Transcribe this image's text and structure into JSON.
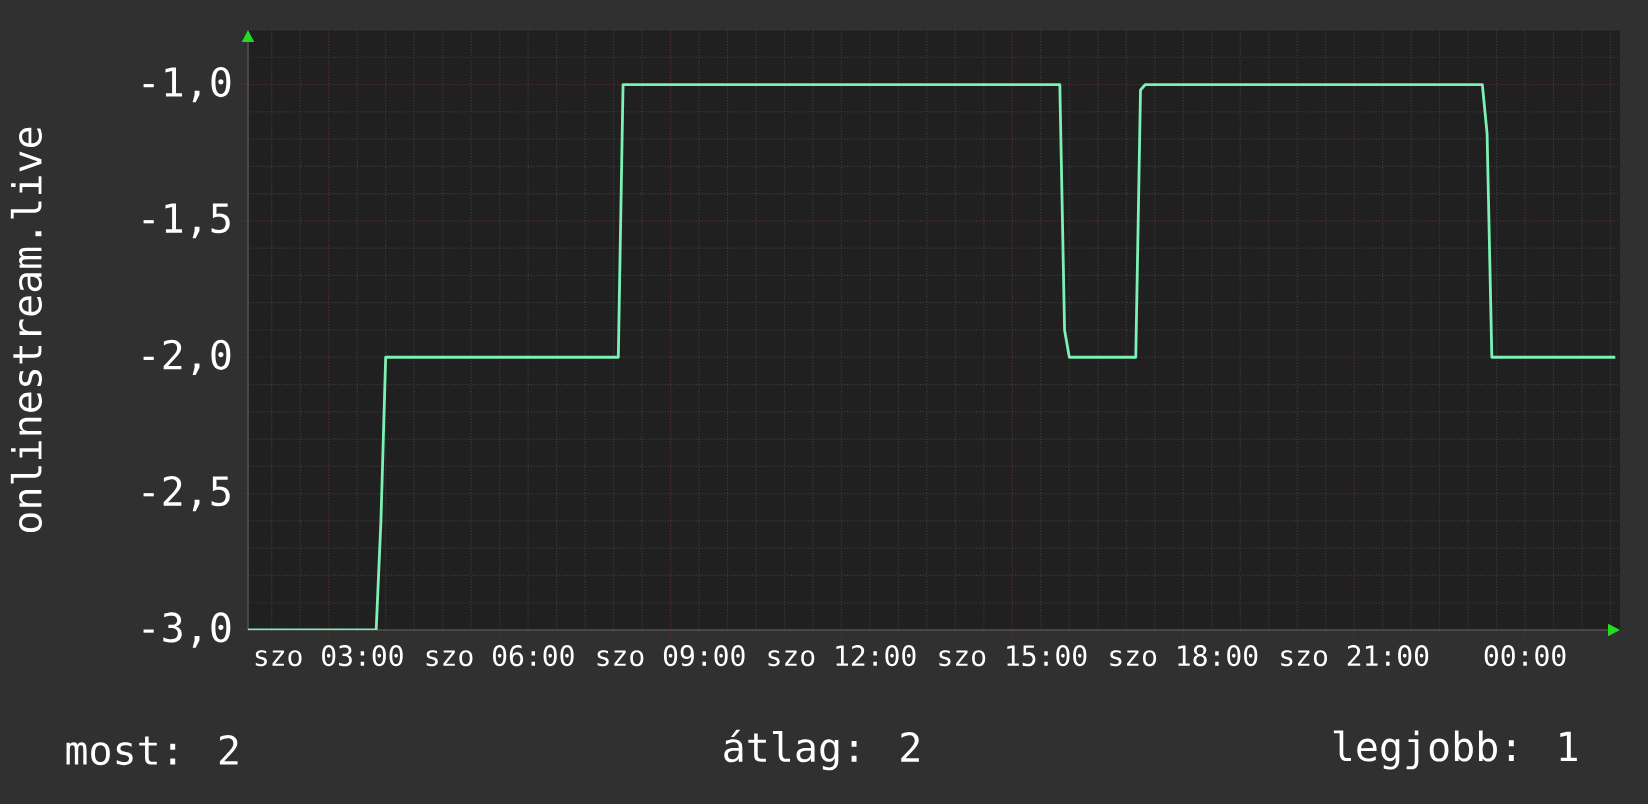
{
  "chart_data": {
    "type": "line",
    "ylabel": "onlinestream.live",
    "categories": [
      null,
      null,
      null,
      null,
      null,
      null,
      null,
      null,
      null,
      null,
      null,
      null,
      null,
      null,
      null,
      null,
      null,
      "szo 03:00",
      null,
      null,
      null,
      null,
      null,
      null,
      null,
      null,
      null,
      null,
      null,
      null,
      null,
      null,
      null,
      null,
      null,
      null,
      null,
      null,
      null,
      null,
      null,
      null,
      null,
      null,
      null,
      null,
      null,
      null,
      null,
      null,
      null,
      null,
      null,
      "szo 06:00",
      null,
      null,
      null,
      null,
      null,
      null,
      null,
      null,
      null,
      null,
      null,
      null,
      null,
      null,
      null,
      null,
      null,
      null,
      null,
      null,
      null,
      null,
      null,
      null,
      null,
      null,
      null,
      null,
      null,
      null,
      null,
      null,
      null,
      null,
      null,
      "szo 09:00",
      null,
      null,
      null,
      null,
      null,
      null,
      null,
      null,
      null,
      null,
      null,
      null,
      null,
      null,
      null,
      null,
      null,
      null,
      null,
      null,
      null,
      null,
      null,
      null,
      null,
      null,
      null,
      null,
      null,
      null,
      null,
      null,
      null,
      null,
      null,
      "szo 12:00",
      null,
      null,
      null,
      null,
      null,
      null,
      null,
      null,
      null,
      null,
      null,
      null,
      null,
      null,
      null,
      null,
      null,
      null,
      null,
      null,
      null,
      null,
      null,
      null,
      null,
      null,
      null,
      null,
      null,
      null,
      null,
      null,
      null,
      null,
      null,
      "szo 15:00",
      null,
      null,
      null,
      null,
      null,
      null,
      null,
      null,
      null,
      null,
      null,
      null,
      null,
      null,
      null,
      null,
      null,
      null,
      null,
      null,
      null,
      null,
      null,
      null,
      null,
      null,
      null,
      null,
      null,
      null,
      null,
      null,
      null,
      null,
      null,
      "szo 18:00",
      null,
      null,
      null,
      null,
      null,
      null,
      null,
      null,
      null,
      null,
      null,
      null,
      null,
      null,
      null,
      null,
      null,
      null,
      null,
      null,
      null,
      null,
      null,
      null,
      null,
      null,
      null,
      null,
      null,
      null,
      null,
      null,
      null,
      null,
      null,
      "szo 21:00",
      null,
      null,
      null,
      null,
      null,
      null,
      null,
      null,
      null,
      null,
      null,
      null,
      null,
      null,
      null,
      null,
      null,
      null,
      null,
      null,
      null,
      null,
      null,
      null,
      null,
      null,
      null,
      null,
      null,
      null,
      null,
      null,
      null,
      null,
      null,
      "00:00",
      null,
      null,
      null,
      null,
      null,
      null,
      null,
      null,
      null,
      null,
      null,
      null,
      null,
      null,
      null,
      null,
      null,
      null,
      null
    ],
    "series": [
      {
        "color": "#7df0b4",
        "values": [
          -3,
          -3,
          -3,
          -3,
          -3,
          -3,
          -3,
          -3,
          -3,
          -3,
          -3,
          -3,
          -3,
          -3,
          -3,
          -3,
          -3,
          -3,
          -3,
          -3,
          -3,
          -3,
          -3,
          -3,
          -3,
          -3,
          -3,
          -3,
          -2.6,
          -2,
          -2,
          -2,
          -2,
          -2,
          -2,
          -2,
          -2,
          -2,
          -2,
          -2,
          -2,
          -2,
          -2,
          -2,
          -2,
          -2,
          -2,
          -2,
          -2,
          -2,
          -2,
          -2,
          -2,
          -2,
          -2,
          -2,
          -2,
          -2,
          -2,
          -2,
          -2,
          -2,
          -2,
          -2,
          -2,
          -2,
          -2,
          -2,
          -2,
          -2,
          -2,
          -2,
          -2,
          -2,
          -2,
          -2,
          -2,
          -2,
          -2,
          -1,
          -1,
          -1,
          -1,
          -1,
          -1,
          -1,
          -1,
          -1,
          -1,
          -1,
          -1,
          -1,
          -1,
          -1,
          -1,
          -1,
          -1,
          -1,
          -1,
          -1,
          -1,
          -1,
          -1,
          -1,
          -1,
          -1,
          -1,
          -1,
          -1,
          -1,
          -1,
          -1,
          -1,
          -1,
          -1,
          -1,
          -1,
          -1,
          -1,
          -1,
          -1,
          -1,
          -1,
          -1,
          -1,
          -1,
          -1,
          -1,
          -1,
          -1,
          -1,
          -1,
          -1,
          -1,
          -1,
          -1,
          -1,
          -1,
          -1,
          -1,
          -1,
          -1,
          -1,
          -1,
          -1,
          -1,
          -1,
          -1,
          -1,
          -1,
          -1,
          -1,
          -1,
          -1,
          -1,
          -1,
          -1,
          -1,
          -1,
          -1,
          -1,
          -1,
          -1,
          -1,
          -1,
          -1,
          -1,
          -1,
          -1,
          -1,
          -1,
          -1,
          -1.9,
          -2,
          -2,
          -2,
          -2,
          -2,
          -2,
          -2,
          -2,
          -2,
          -2,
          -2,
          -2,
          -2,
          -2,
          -2,
          -1.02,
          -1,
          -1,
          -1,
          -1,
          -1,
          -1,
          -1,
          -1,
          -1,
          -1,
          -1,
          -1,
          -1,
          -1,
          -1,
          -1,
          -1,
          -1,
          -1,
          -1,
          -1,
          -1,
          -1,
          -1,
          -1,
          -1,
          -1,
          -1,
          -1,
          -1,
          -1,
          -1,
          -1,
          -1,
          -1,
          -1,
          -1,
          -1,
          -1,
          -1,
          -1,
          -1,
          -1,
          -1,
          -1,
          -1,
          -1,
          -1,
          -1,
          -1,
          -1,
          -1,
          -1,
          -1,
          -1,
          -1,
          -1,
          -1,
          -1,
          -1,
          -1,
          -1,
          -1,
          -1,
          -1,
          -1,
          -1,
          -1,
          -1,
          -1,
          -1,
          -1,
          -1.18,
          -2,
          -2,
          -2,
          -2,
          -2,
          -2,
          -2,
          -2,
          -2,
          -2,
          -2,
          -2,
          -2,
          -2,
          -2,
          -2,
          -2,
          -2,
          -2,
          -2,
          -2,
          -2,
          -2,
          -2,
          -2,
          -2,
          -2
        ]
      }
    ],
    "ylim": [
      -3.0,
      -0.8
    ],
    "yticks": [
      {
        "value": -3.0,
        "label": "-3,0"
      },
      {
        "value": -2.5,
        "label": "-2,5"
      },
      {
        "value": -2.0,
        "label": "-2,0"
      },
      {
        "value": -1.5,
        "label": "-1,5"
      },
      {
        "value": -1.0,
        "label": "-1,0"
      }
    ],
    "grid": true,
    "marker": "none",
    "line_style": "solid",
    "annotations": [
      "most: 2",
      "átlag: 2",
      "legjobb: 1"
    ]
  }
}
